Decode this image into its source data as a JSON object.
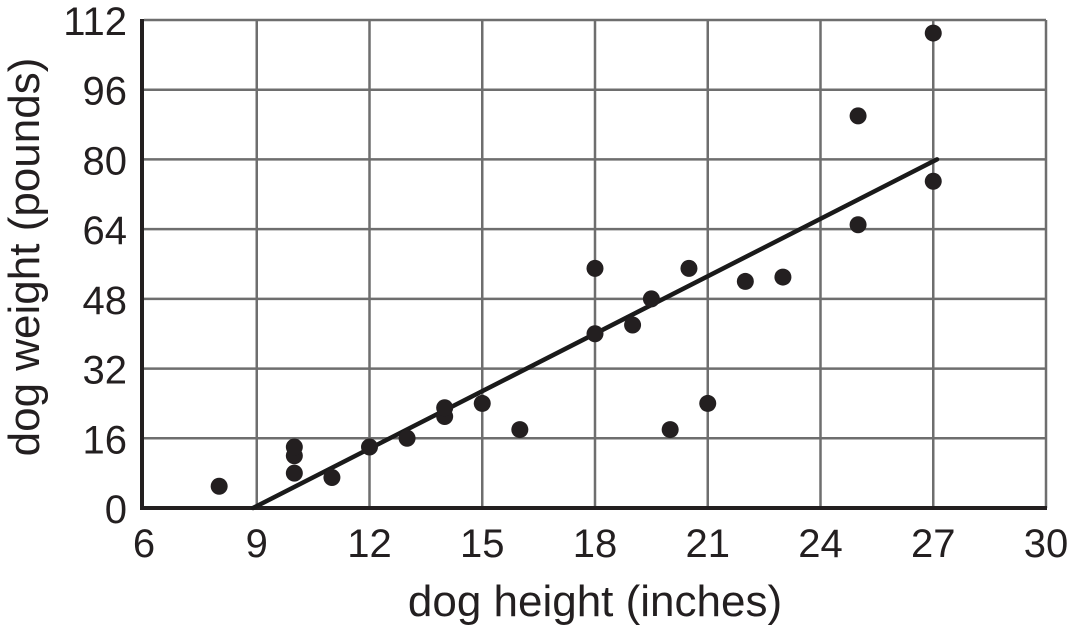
{
  "chart_data": {
    "type": "scatter",
    "title": "",
    "xlabel": "dog height (inches)",
    "ylabel": "dog weight (pounds)",
    "xlim": [
      6,
      30
    ],
    "ylim": [
      0,
      112
    ],
    "x_ticks": [
      6,
      9,
      12,
      15,
      18,
      21,
      24,
      27,
      30
    ],
    "y_ticks": [
      0,
      16,
      32,
      48,
      64,
      80,
      96,
      112
    ],
    "grid": true,
    "legend": "none",
    "points": [
      [
        8,
        5
      ],
      [
        10,
        8
      ],
      [
        10,
        12
      ],
      [
        10,
        14
      ],
      [
        11,
        7
      ],
      [
        12,
        14
      ],
      [
        13,
        16
      ],
      [
        14,
        21
      ],
      [
        14,
        23
      ],
      [
        15,
        24
      ],
      [
        16,
        18
      ],
      [
        18,
        40
      ],
      [
        18,
        55
      ],
      [
        19,
        42
      ],
      [
        19.5,
        48
      ],
      [
        20,
        18
      ],
      [
        20.5,
        55
      ],
      [
        21,
        24
      ],
      [
        22,
        52
      ],
      [
        23,
        53
      ],
      [
        25,
        65
      ],
      [
        25,
        90
      ],
      [
        27,
        75
      ],
      [
        27,
        109
      ]
    ],
    "trend_line": {
      "x1": 8.9,
      "y1": 0,
      "x2": 27.1,
      "y2": 80
    },
    "colors": {
      "background": "#ffffff",
      "point": "#231f20",
      "trend_line": "#1a1a1a",
      "gridline": "#6e6e6e",
      "axis": "#231f20",
      "text": "#231f20"
    }
  }
}
